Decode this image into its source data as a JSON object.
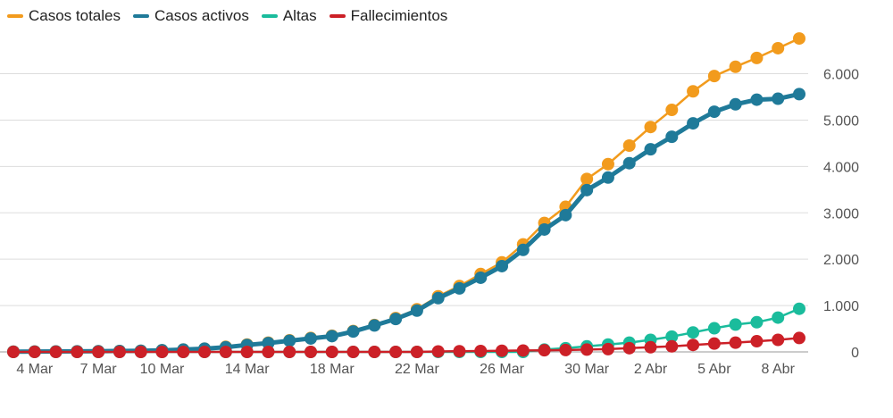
{
  "chart_data": {
    "type": "line",
    "legend_position": "top-left",
    "grid": true,
    "ylim": [
      0,
      6800
    ],
    "y_ticks": [
      {
        "value": 0,
        "label": "0"
      },
      {
        "value": 1000,
        "label": "1.000"
      },
      {
        "value": 2000,
        "label": "2.000"
      },
      {
        "value": 3000,
        "label": "3.000"
      },
      {
        "value": 4000,
        "label": "4.000"
      },
      {
        "value": 5000,
        "label": "5.000"
      },
      {
        "value": 6000,
        "label": "6.000"
      }
    ],
    "x_tick_labels": [
      {
        "index": 1,
        "label": "4 Mar"
      },
      {
        "index": 4,
        "label": "7 Mar"
      },
      {
        "index": 7,
        "label": "10 Mar"
      },
      {
        "index": 11,
        "label": "14 Mar"
      },
      {
        "index": 15,
        "label": "18 Mar"
      },
      {
        "index": 19,
        "label": "22 Mar"
      },
      {
        "index": 23,
        "label": "26 Mar"
      },
      {
        "index": 27,
        "label": "30 Mar"
      },
      {
        "index": 30,
        "label": "2 Abr"
      },
      {
        "index": 33,
        "label": "5 Abr"
      },
      {
        "index": 36,
        "label": "8 Abr"
      }
    ],
    "categories": [
      "3 Mar",
      "4 Mar",
      "5 Mar",
      "6 Mar",
      "7 Mar",
      "8 Mar",
      "9 Mar",
      "10 Mar",
      "11 Mar",
      "12 Mar",
      "13 Mar",
      "14 Mar",
      "15 Mar",
      "16 Mar",
      "17 Mar",
      "18 Mar",
      "19 Mar",
      "20 Mar",
      "21 Mar",
      "22 Mar",
      "23 Mar",
      "24 Mar",
      "25 Mar",
      "26 Mar",
      "27 Mar",
      "28 Mar",
      "29 Mar",
      "30 Mar",
      "31 Mar",
      "1 Abr",
      "2 Abr",
      "3 Abr",
      "4 Abr",
      "5 Abr",
      "6 Abr",
      "7 Abr",
      "8 Abr",
      "9 Abr"
    ],
    "series": [
      {
        "name": "Casos totales",
        "color": "#f29b1d",
        "values": [
          5,
          7,
          10,
          12,
          15,
          20,
          25,
          35,
          50,
          70,
          110,
          160,
          200,
          250,
          300,
          350,
          450,
          580,
          730,
          920,
          1200,
          1420,
          1680,
          1930,
          2320,
          2780,
          3130,
          3730,
          4050,
          4450,
          4850,
          5220,
          5620,
          5950,
          6150,
          6340,
          6550,
          6760
        ]
      },
      {
        "name": "Casos activos",
        "color": "#1f7a99",
        "values": [
          5,
          7,
          10,
          12,
          15,
          20,
          25,
          35,
          50,
          70,
          100,
          150,
          190,
          240,
          290,
          340,
          440,
          570,
          710,
          890,
          1160,
          1370,
          1600,
          1850,
          2200,
          2640,
          2950,
          3490,
          3760,
          4070,
          4370,
          4640,
          4930,
          5180,
          5340,
          5440,
          5460,
          5560
        ]
      },
      {
        "name": "Altas",
        "color": "#1abc9c",
        "values": [
          0,
          0,
          0,
          0,
          0,
          0,
          0,
          0,
          0,
          0,
          0,
          0,
          0,
          0,
          0,
          0,
          0,
          0,
          0,
          0,
          0,
          0,
          0,
          0,
          0,
          50,
          80,
          120,
          160,
          200,
          260,
          330,
          420,
          510,
          590,
          640,
          740,
          930
        ]
      },
      {
        "name": "Fallecimientos",
        "color": "#cc2027",
        "values": [
          0,
          0,
          0,
          0,
          0,
          0,
          0,
          0,
          0,
          0,
          0,
          0,
          0,
          0,
          0,
          0,
          0,
          0,
          0,
          0,
          10,
          15,
          20,
          25,
          30,
          35,
          40,
          50,
          60,
          80,
          100,
          120,
          150,
          180,
          200,
          230,
          260,
          300
        ]
      }
    ]
  }
}
